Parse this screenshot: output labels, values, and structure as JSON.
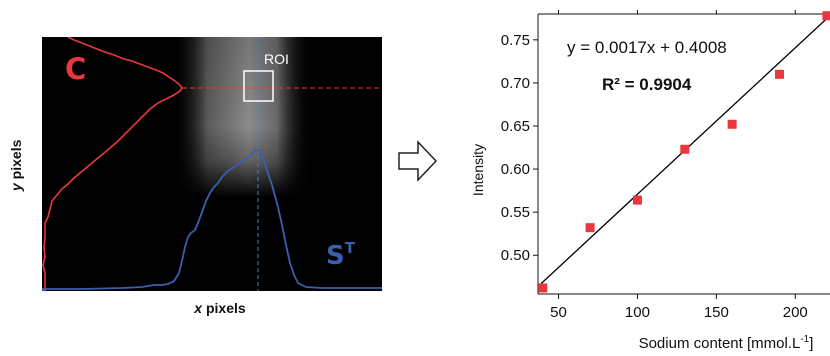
{
  "figure": {
    "image_panel": {
      "c_label": "C",
      "roi_label": "ROI",
      "s_label": "S",
      "s_superscript": "T",
      "x_axis_label_italic": "x",
      "x_axis_label_rest": " pixels",
      "y_axis_label_italic": "y",
      "y_axis_label_rest": " pixels",
      "colors": {
        "c_profile": "#e8383d",
        "s_profile": "#3a5fb0",
        "roi_box": "#ffffff",
        "background": "#000000"
      }
    },
    "arrow_icon": "right-arrow-icon"
  },
  "chart_data": {
    "type": "scatter",
    "x": [
      40,
      70,
      100,
      130,
      160,
      190,
      220
    ],
    "y": [
      0.462,
      0.532,
      0.564,
      0.623,
      0.652,
      0.71,
      0.778
    ],
    "fit": {
      "slope": 0.0017,
      "intercept": 0.4008
    },
    "equation_label": "y = 0.0017x + 0.4008",
    "r2_label": "R² = 0.9904",
    "xlabel": "Sodium content [mmol.L",
    "xlabel_superscript": "-1",
    "xlabel_suffix": "]",
    "ylabel": "Intensity",
    "x_ticks": [
      "50",
      "100",
      "150",
      "200"
    ],
    "x_tick_values": [
      50,
      100,
      150,
      200
    ],
    "y_ticks": [
      "0.50",
      "0.55",
      "0.60",
      "0.65",
      "0.70",
      "0.75"
    ],
    "y_tick_values": [
      0.5,
      0.55,
      0.6,
      0.65,
      0.7,
      0.75
    ],
    "xlim": [
      37,
      222
    ],
    "ylim": [
      0.455,
      0.78
    ],
    "marker_color": "#e8383d",
    "line_color": "#000000",
    "grid": false
  }
}
